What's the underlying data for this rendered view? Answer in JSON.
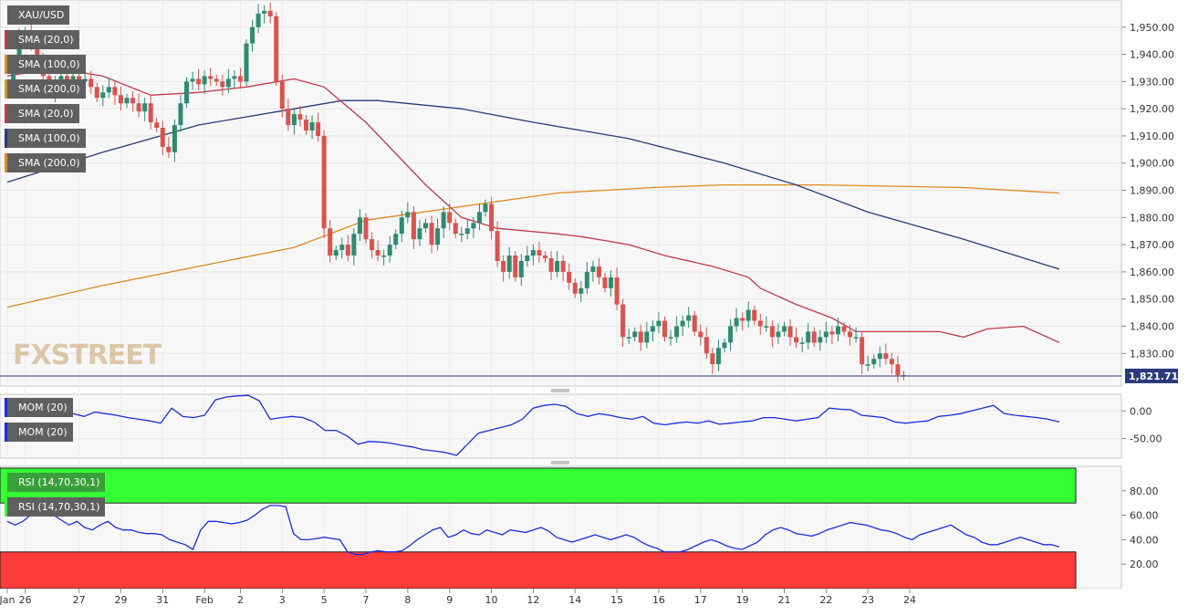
{
  "instrument": "XAU/USD",
  "price_indicators": [
    {
      "label": "SMA (20,0)",
      "color": "#c0394b"
    },
    {
      "label": "SMA (100,0)",
      "color": "#d98a1c"
    },
    {
      "label": "SMA (200,0)",
      "color": "#c8a020"
    },
    {
      "label": "SMA (20,0)",
      "color": "#c0394b"
    },
    {
      "label": "SMA (100,0)",
      "color": "#2a3a7a"
    },
    {
      "label": "SMA (200,0)",
      "color": "#e08a20"
    }
  ],
  "momentum_labels": [
    "MOM (20)",
    "MOM (20)"
  ],
  "rsi_labels": [
    "RSI (14,70,30,1)",
    "RSI (14,70,30,1)"
  ],
  "watermark": "FXSTREET",
  "current_price_label": "1,821.71",
  "colors": {
    "up": "#2e8b70",
    "down": "#d9534f",
    "sma20": "#c0394b",
    "sma100": "#2a3a7a",
    "sma200": "#e08a20",
    "mom": "#1a2ee0",
    "rsi": "#1a2ee0",
    "overbought": "#33ff33",
    "oversold": "#ff3b3b"
  },
  "chart_data": [
    {
      "type": "candlestick",
      "title": "XAU/USD",
      "ylim": [
        1818,
        1960
      ],
      "y_ticks": [
        "1,950.00",
        "1,940.00",
        "1,930.00",
        "1,920.00",
        "1,910.00",
        "1,900.00",
        "1,890.00",
        "1,880.00",
        "1,870.00",
        "1,860.00",
        "1,850.00",
        "1,840.00",
        "1,830.00"
      ],
      "x_ticks": [
        "Jan",
        "26",
        "27",
        "29",
        "31",
        "Feb",
        "2",
        "3",
        "5",
        "7",
        "8",
        "9",
        "10",
        "12",
        "14",
        "15",
        "16",
        "17",
        "19",
        "21",
        "22",
        "23",
        "24"
      ],
      "x_tick_index": [
        0,
        3,
        12,
        19,
        26,
        33,
        39,
        46,
        53,
        60,
        67,
        74,
        81,
        88,
        95,
        102,
        109,
        116,
        123,
        130,
        137,
        144,
        151
      ],
      "current_price": 1821.71,
      "closes": [
        1930,
        1936,
        1946,
        1948,
        1944,
        1938,
        1932,
        1926,
        1930,
        1932,
        1928,
        1932,
        1930,
        1931,
        1928,
        1924,
        1926,
        1928,
        1925,
        1922,
        1924,
        1922,
        1919,
        1922,
        1915,
        1913,
        1906,
        1904,
        1914,
        1922,
        1930,
        1931,
        1929,
        1932,
        1931,
        1930,
        1928,
        1931,
        1932,
        1930,
        1944,
        1950,
        1955,
        1956,
        1954,
        1930,
        1920,
        1914,
        1918,
        1916,
        1912,
        1915,
        1910,
        1876,
        1866,
        1868,
        1870,
        1866,
        1874,
        1880,
        1872,
        1868,
        1866,
        1866,
        1870,
        1874,
        1880,
        1882,
        1872,
        1876,
        1878,
        1870,
        1876,
        1882,
        1878,
        1874,
        1874,
        1876,
        1878,
        1882,
        1885,
        1875,
        1864,
        1860,
        1866,
        1858,
        1864,
        1866,
        1868,
        1866,
        1865,
        1860,
        1864,
        1860,
        1856,
        1852,
        1854,
        1860,
        1862,
        1858,
        1854,
        1858,
        1848,
        1836,
        1836,
        1838,
        1834,
        1838,
        1840,
        1842,
        1836,
        1836,
        1840,
        1842,
        1844,
        1838,
        1836,
        1830,
        1826,
        1832,
        1834,
        1840,
        1843,
        1842,
        1846,
        1842,
        1840,
        1840,
        1836,
        1838,
        1840,
        1836,
        1834,
        1834,
        1838,
        1834,
        1836,
        1838,
        1837,
        1840,
        1838,
        1836,
        1836,
        1826,
        1826,
        1828,
        1830,
        1828,
        1826,
        1822,
        1821.71
      ],
      "sma20_points": [
        [
          0,
          1932
        ],
        [
          8,
          1935
        ],
        [
          16,
          1932
        ],
        [
          24,
          1925
        ],
        [
          32,
          1926
        ],
        [
          40,
          1928
        ],
        [
          48,
          1931
        ],
        [
          53,
          1928
        ],
        [
          60,
          1915
        ],
        [
          70,
          1892
        ],
        [
          76,
          1880
        ],
        [
          82,
          1876
        ],
        [
          92,
          1874
        ],
        [
          96,
          1873
        ],
        [
          104,
          1870
        ],
        [
          110,
          1866
        ],
        [
          118,
          1862
        ],
        [
          124,
          1858
        ],
        [
          126,
          1854
        ],
        [
          132,
          1848
        ],
        [
          138,
          1843
        ],
        [
          142,
          1838
        ],
        [
          146,
          1838
        ],
        [
          150,
          1838
        ],
        [
          152,
          1838
        ],
        [
          156,
          1838
        ],
        [
          160,
          1836
        ],
        [
          164,
          1839
        ],
        [
          170,
          1840
        ],
        [
          176,
          1834
        ]
      ],
      "sma100_points": [
        [
          0,
          1893
        ],
        [
          16,
          1904
        ],
        [
          32,
          1914
        ],
        [
          48,
          1920
        ],
        [
          56,
          1923
        ],
        [
          62,
          1923
        ],
        [
          76,
          1920
        ],
        [
          88,
          1915
        ],
        [
          104,
          1909
        ],
        [
          120,
          1900
        ],
        [
          132,
          1892
        ],
        [
          144,
          1882
        ],
        [
          160,
          1872
        ],
        [
          176,
          1861
        ]
      ],
      "sma200_points": [
        [
          0,
          1847
        ],
        [
          16,
          1855
        ],
        [
          32,
          1862
        ],
        [
          48,
          1869
        ],
        [
          60,
          1879
        ],
        [
          76,
          1884
        ],
        [
          92,
          1889
        ],
        [
          108,
          1891
        ],
        [
          120,
          1892
        ],
        [
          136,
          1892
        ],
        [
          160,
          1891
        ],
        [
          176,
          1889
        ]
      ]
    },
    {
      "type": "line",
      "title": "MOM (20)",
      "ylim": [
        -85,
        30
      ],
      "y_ticks": [
        "0.00",
        "-50.00"
      ],
      "series": [
        {
          "name": "MOM (20)",
          "values": [
            5,
            12,
            10,
            15,
            12,
            8,
            -5,
            -10,
            -2,
            -5,
            -8,
            -12,
            -15,
            -18,
            -22,
            5,
            -10,
            -12,
            -8,
            20,
            25,
            27,
            28,
            18,
            -15,
            -12,
            -10,
            -12,
            -20,
            -35,
            -35,
            -45,
            -60,
            -55,
            -56,
            -58,
            -62,
            -65,
            -70,
            -72,
            -75,
            -80,
            -60,
            -40,
            -35,
            -30,
            -25,
            -15,
            5,
            10,
            12,
            8,
            -5,
            -10,
            -5,
            -8,
            -12,
            -15,
            -10,
            -22,
            -25,
            -22,
            -20,
            -22,
            -18,
            -24,
            -22,
            -20,
            -18,
            -12,
            -12,
            -15,
            -18,
            -15,
            -12,
            5,
            3,
            2,
            -8,
            -10,
            -12,
            -20,
            -22,
            -20,
            -18,
            -10,
            -8,
            -5,
            0,
            5,
            10,
            -5,
            -8,
            -10,
            -12,
            -15,
            -20
          ]
        }
      ]
    },
    {
      "type": "line",
      "title": "RSI (14,70,30,1)",
      "ylim": [
        0,
        100
      ],
      "y_ticks": [
        "80.00",
        "60.00",
        "40.00",
        "20.00"
      ],
      "bands": {
        "overbought": 70,
        "oversold": 30
      },
      "series": [
        {
          "name": "RSI (14,70,30,1)",
          "values": [
            55,
            52,
            55,
            60,
            68,
            65,
            60,
            56,
            52,
            55,
            50,
            48,
            52,
            55,
            50,
            48,
            48,
            46,
            45,
            45,
            44,
            40,
            38,
            36,
            32,
            48,
            55,
            55,
            54,
            53,
            54,
            56,
            60,
            65,
            68,
            68,
            67,
            45,
            40,
            40,
            41,
            42,
            41,
            40,
            30,
            28,
            28,
            30,
            31,
            30,
            30,
            31,
            35,
            40,
            44,
            48,
            50,
            42,
            44,
            48,
            45,
            44,
            48,
            46,
            44,
            48,
            47,
            46,
            48,
            50,
            47,
            42,
            40,
            38,
            40,
            42,
            44,
            42,
            40,
            42,
            44,
            42,
            38,
            35,
            33,
            30,
            30,
            30,
            32,
            35,
            38,
            40,
            38,
            35,
            33,
            32,
            35,
            38,
            44,
            48,
            50,
            48,
            45,
            44,
            43,
            45,
            48,
            50,
            52,
            54,
            53,
            52,
            50,
            48,
            47,
            45,
            42,
            40,
            44,
            46,
            48,
            50,
            52,
            48,
            44,
            42,
            38,
            36,
            36,
            38,
            40,
            42,
            40,
            38,
            36,
            36,
            34
          ]
        }
      ]
    }
  ]
}
